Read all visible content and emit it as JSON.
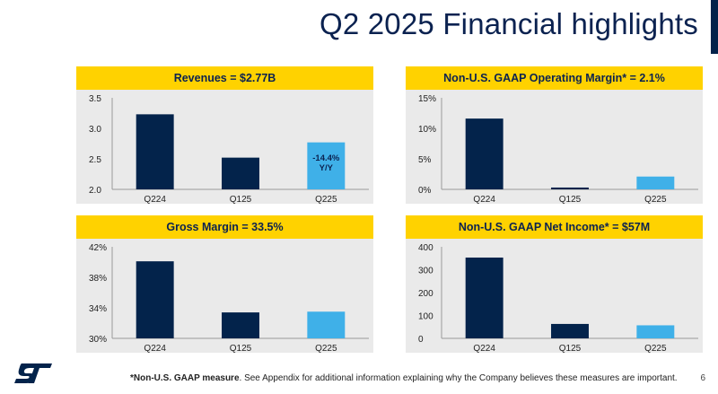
{
  "page": {
    "title": "Q2 2025 Financial highlights",
    "footnote_bold": "*Non-U.S. GAAP measure",
    "footnote_text": ". See Appendix for additional information explaining why the Company believes these measures are important.",
    "page_number": "6",
    "logo_text": "ST",
    "colors": {
      "header_bg": "#ffd200",
      "dark_bar": "#03234b",
      "light_bar": "#3fb0e8",
      "panel_bg": "#eaeaea",
      "title": "#0b2250"
    }
  },
  "chart_data": [
    {
      "type": "bar",
      "title": "Revenues = $2.77B",
      "categories": [
        "Q224",
        "Q125",
        "Q225"
      ],
      "values": [
        3.23,
        2.52,
        2.77
      ],
      "ylim": [
        2.0,
        3.5
      ],
      "yticks": [
        "2.0",
        "2.5",
        "3.0",
        "3.5"
      ],
      "ytick_values": [
        2.0,
        2.5,
        3.0,
        3.5
      ],
      "annotation": [
        "-14.4%",
        "Y/Y"
      ]
    },
    {
      "type": "bar",
      "title": "Non-U.S. GAAP Operating Margin* = 2.1%",
      "categories": [
        "Q224",
        "Q125",
        "Q225"
      ],
      "values": [
        11.6,
        0.3,
        2.1
      ],
      "ylim": [
        0,
        15
      ],
      "yticks": [
        "0%",
        "5%",
        "10%",
        "15%"
      ],
      "ytick_values": [
        0,
        5,
        10,
        15
      ]
    },
    {
      "type": "bar",
      "title": "Gross Margin = 33.5%",
      "categories": [
        "Q224",
        "Q125",
        "Q225"
      ],
      "values": [
        40.1,
        33.4,
        33.5
      ],
      "ylim": [
        30,
        42
      ],
      "yticks": [
        "30%",
        "34%",
        "38%",
        "42%"
      ],
      "ytick_values": [
        30,
        34,
        38,
        42
      ]
    },
    {
      "type": "bar",
      "title": "Non-U.S. GAAP Net Income* = $57M",
      "categories": [
        "Q224",
        "Q125",
        "Q225"
      ],
      "values": [
        353,
        63,
        57
      ],
      "ylim": [
        0,
        400
      ],
      "yticks": [
        "0",
        "100",
        "200",
        "300",
        "400"
      ],
      "ytick_values": [
        0,
        100,
        200,
        300,
        400
      ]
    }
  ]
}
